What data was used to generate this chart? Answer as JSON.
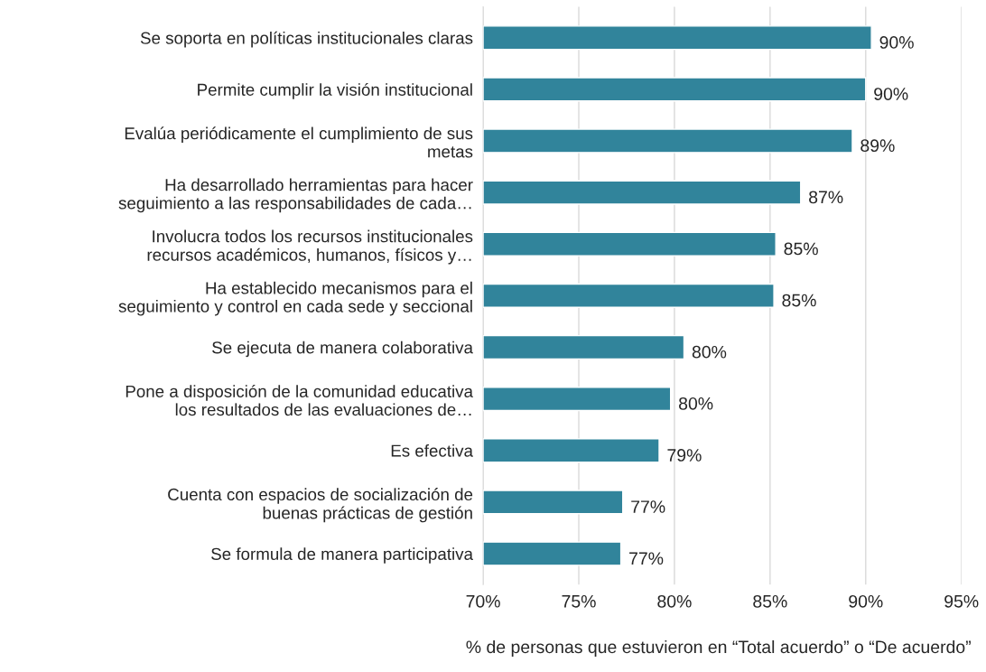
{
  "chart_data": {
    "type": "bar",
    "orientation": "horizontal",
    "categories": [
      "Se soporta en políticas institucionales claras",
      "Permite cumplir la visión institucional",
      "Evalúa periódicamente el cumplimiento de sus\nmetas",
      "Ha desarrollado herramientas para hacer\nseguimiento a las responsabilidades de cada…",
      "Involucra todos los recursos institucionales\nrecursos académicos, humanos, físicos y…",
      "Ha establecido mecanismos para el\nseguimiento y control en cada sede y seccional",
      "Se ejecuta de manera colaborativa",
      "Pone a disposición de la comunidad educativa\nlos resultados de las evaluaciones de…",
      "Es efectiva",
      "Cuenta con espacios de socialización de\nbuenas prácticas de gestión",
      "Se formula de manera participativa"
    ],
    "values": [
      90.3,
      90.0,
      89.3,
      86.6,
      85.3,
      85.2,
      80.5,
      79.8,
      79.2,
      77.3,
      77.2
    ],
    "value_labels": [
      "90%",
      "90%",
      "89%",
      "87%",
      "85%",
      "85%",
      "80%",
      "80%",
      "79%",
      "77%",
      "77%"
    ],
    "color": "#31849b",
    "xlim": [
      70,
      95
    ],
    "xticks": [
      {
        "value": 70,
        "label": "70%"
      },
      {
        "value": 75,
        "label": "75%"
      },
      {
        "value": 80,
        "label": "80%"
      },
      {
        "value": 85,
        "label": "85%"
      },
      {
        "value": 90,
        "label": "90%"
      },
      {
        "value": 95,
        "label": "95%"
      }
    ],
    "xlabel": "% de personas que estuvieron en “Total acuerdo” o “De acuerdo”",
    "grid": "x",
    "legend": false
  }
}
